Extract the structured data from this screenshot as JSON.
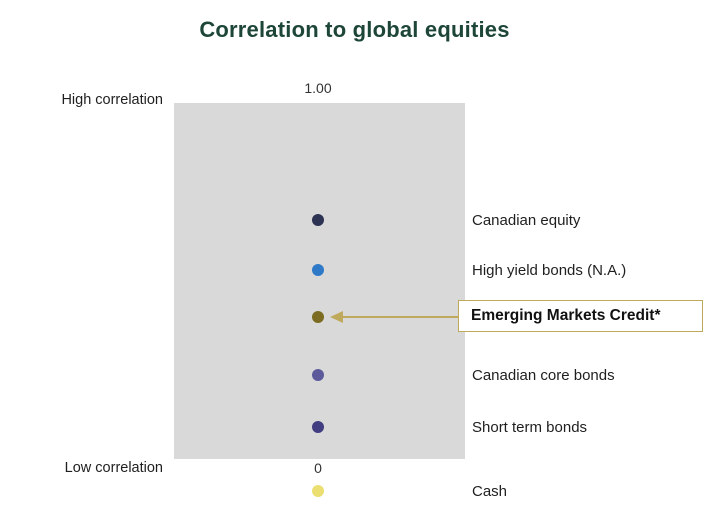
{
  "title": "Correlation to global equities",
  "axis": {
    "top_label": "High correlation",
    "bottom_label": "Low correlation",
    "top_tick": "1.00",
    "bottom_tick": "0"
  },
  "colors": {
    "title": "#1d4639",
    "plot_band": "#d9d9d9",
    "label_text": "#1f1f1f",
    "callout_gold": "#bfa95c"
  },
  "chart_data": {
    "type": "scatter",
    "title": "Correlation to global equities",
    "ylabel": "Correlation to global equities",
    "ylim": [
      0,
      1.0
    ],
    "axis_ticks": [
      "1.00",
      "0"
    ],
    "legend_position": "right-of-points",
    "grid": false,
    "series": [
      {
        "name": "Canadian equity",
        "value": 0.67,
        "color": "#2d3353",
        "highlighted": false
      },
      {
        "name": "High yield bonds (N.A.)",
        "value": 0.53,
        "color": "#2e7ac8",
        "highlighted": false
      },
      {
        "name": "Emerging Markets Credit*",
        "value": 0.4,
        "color": "#7c6c21",
        "highlighted": true
      },
      {
        "name": "Canadian core bonds",
        "value": 0.235,
        "color": "#5d5a9c",
        "highlighted": false
      },
      {
        "name": "Short term bonds",
        "value": 0.09,
        "color": "#413d80",
        "highlighted": false
      },
      {
        "name": "Cash",
        "value": -0.09,
        "color": "#ebdf72",
        "highlighted": false
      }
    ]
  }
}
